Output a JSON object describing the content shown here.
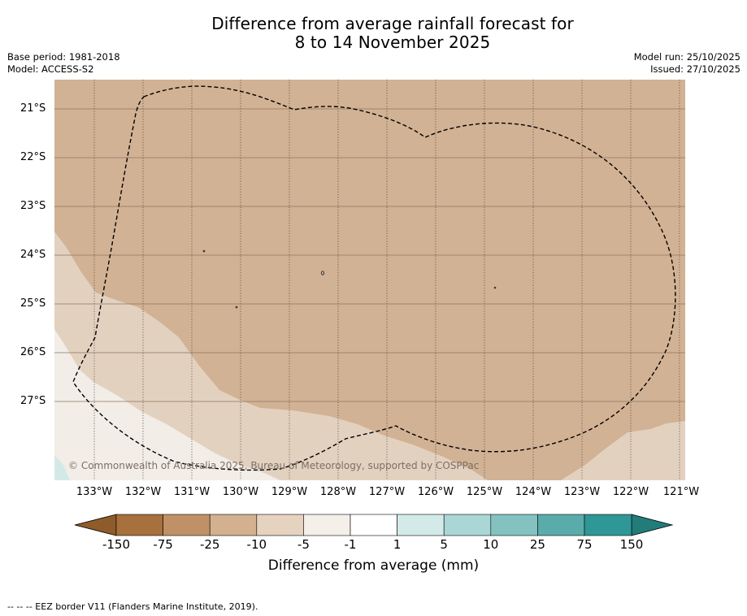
{
  "title": {
    "line1": "Difference from average rainfall forecast for",
    "line2": "8 to 14 November 2025"
  },
  "meta": {
    "base_period": "Base period: 1981-2018",
    "model": "Model: ACCESS-S2",
    "model_run": "Model run: 25/10/2025",
    "issued": "Issued: 27/10/2025"
  },
  "map": {
    "lat_labels": [
      "21°S",
      "22°S",
      "23°S",
      "24°S",
      "25°S",
      "26°S",
      "27°S"
    ],
    "lon_labels": [
      "133°W",
      "132°W",
      "131°W",
      "130°W",
      "129°W",
      "128°W",
      "127°W",
      "126°W",
      "125°W",
      "124°W",
      "123°W",
      "122°W",
      "121°W"
    ],
    "copyright": "© Commonwealth of Australia 2025, Bureau of Meteorology, supported by COSPPac"
  },
  "colorbar": {
    "colors": [
      "#a8703c",
      "#c09167",
      "#d2b090",
      "#e5d2bf",
      "#f4efe8",
      "#ffffff",
      "#d4eae9",
      "#abd6d6",
      "#83c2c0",
      "#5aacab",
      "#2f9795"
    ],
    "under_color": "#8e5b2a",
    "over_color": "#217c7a",
    "ticks": [
      "-150",
      "-75",
      "-25",
      "-10",
      "-5",
      "-1",
      "1",
      "5",
      "10",
      "25",
      "75",
      "150"
    ],
    "label": "Difference from average (mm)"
  },
  "footnote": "--  --  -- EEZ border V11 (Flanders Marine Institute, 2019)."
}
